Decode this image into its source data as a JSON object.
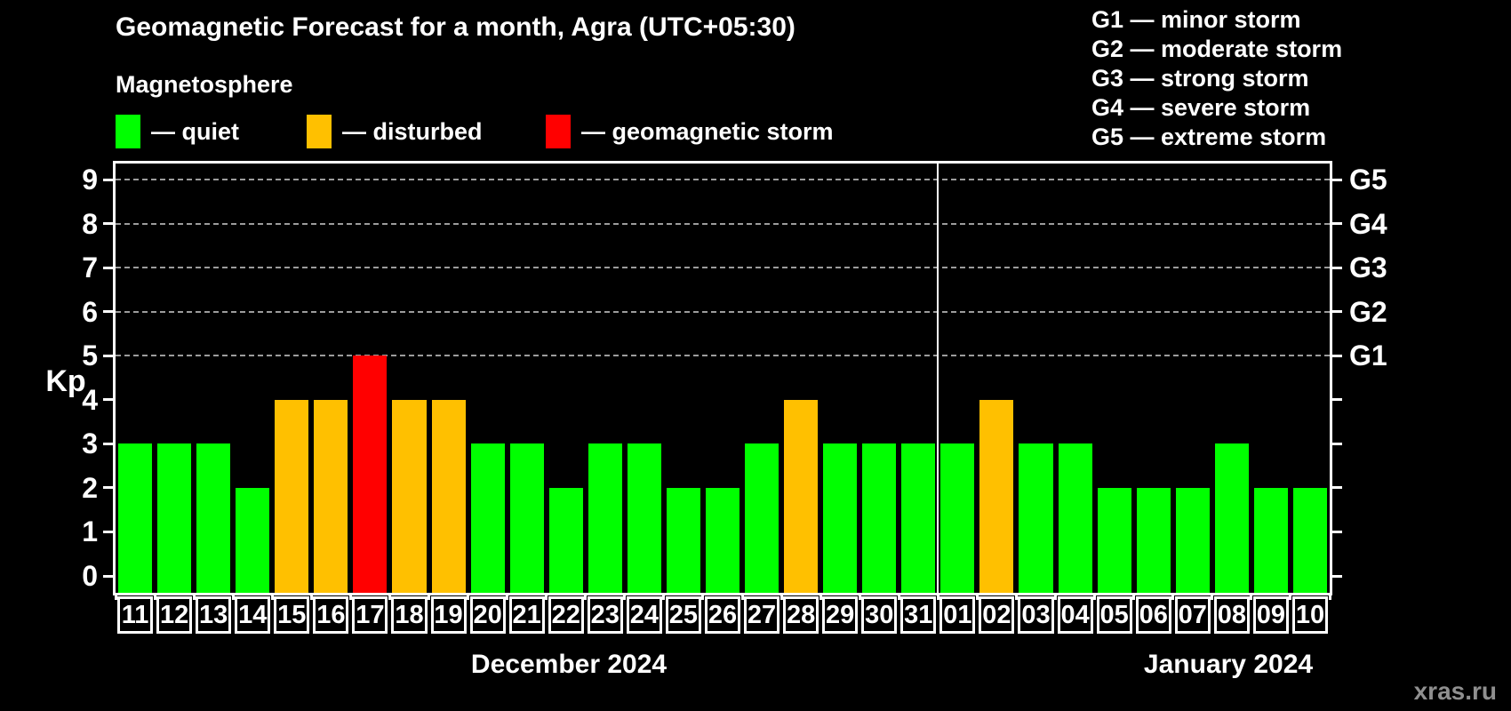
{
  "header": {
    "title": "Geomagnetic Forecast for a month, Agra (UTC+05:30)",
    "subtitle": "Magnetosphere"
  },
  "legend": {
    "items": [
      {
        "name": "quiet",
        "label": "— quiet",
        "color": "#00ff00"
      },
      {
        "name": "disturbed",
        "label": "— disturbed",
        "color": "#ffc000"
      },
      {
        "name": "storm",
        "label": "— geomagnetic storm",
        "color": "#ff0000"
      }
    ]
  },
  "g_scale_legend": {
    "lines": [
      "G1 — minor storm",
      "G2 — moderate storm",
      "G3 — strong storm",
      "G4 — severe storm",
      "G5 — extreme storm"
    ]
  },
  "watermark": "xras.ru",
  "chart_data": {
    "type": "bar",
    "title": "Geomagnetic Forecast for a month, Agra (UTC+05:30)",
    "ylabel": "Kp",
    "ylim": [
      0,
      9
    ],
    "yticks": [
      0,
      1,
      2,
      3,
      4,
      5,
      6,
      7,
      8,
      9
    ],
    "gridlines_at": [
      5,
      6,
      7,
      8,
      9
    ],
    "grid": "dashed-horizontal",
    "legend_position": "top",
    "colors": {
      "quiet": "#00ff00",
      "disturbed": "#ffc000",
      "storm": "#ff0000"
    },
    "right_axis_labels": [
      {
        "kp": 5,
        "label": "G1"
      },
      {
        "kp": 6,
        "label": "G2"
      },
      {
        "kp": 7,
        "label": "G3"
      },
      {
        "kp": 8,
        "label": "G4"
      },
      {
        "kp": 9,
        "label": "G5"
      }
    ],
    "months": [
      {
        "label": "December 2024",
        "days": 21
      },
      {
        "label": "January 2024",
        "days": 10
      }
    ],
    "bars": [
      {
        "day": "11",
        "kp": 3,
        "status": "quiet"
      },
      {
        "day": "12",
        "kp": 3,
        "status": "quiet"
      },
      {
        "day": "13",
        "kp": 3,
        "status": "quiet"
      },
      {
        "day": "14",
        "kp": 2,
        "status": "quiet"
      },
      {
        "day": "15",
        "kp": 4,
        "status": "disturbed"
      },
      {
        "day": "16",
        "kp": 4,
        "status": "disturbed"
      },
      {
        "day": "17",
        "kp": 5,
        "status": "storm"
      },
      {
        "day": "18",
        "kp": 4,
        "status": "disturbed"
      },
      {
        "day": "19",
        "kp": 4,
        "status": "disturbed"
      },
      {
        "day": "20",
        "kp": 3,
        "status": "quiet"
      },
      {
        "day": "21",
        "kp": 3,
        "status": "quiet"
      },
      {
        "day": "22",
        "kp": 2,
        "status": "quiet"
      },
      {
        "day": "23",
        "kp": 3,
        "status": "quiet"
      },
      {
        "day": "24",
        "kp": 3,
        "status": "quiet"
      },
      {
        "day": "25",
        "kp": 2,
        "status": "quiet"
      },
      {
        "day": "26",
        "kp": 2,
        "status": "quiet"
      },
      {
        "day": "27",
        "kp": 3,
        "status": "quiet"
      },
      {
        "day": "28",
        "kp": 4,
        "status": "disturbed"
      },
      {
        "day": "29",
        "kp": 3,
        "status": "quiet"
      },
      {
        "day": "30",
        "kp": 3,
        "status": "quiet"
      },
      {
        "day": "31",
        "kp": 3,
        "status": "quiet"
      },
      {
        "day": "01",
        "kp": 3,
        "status": "quiet"
      },
      {
        "day": "02",
        "kp": 4,
        "status": "disturbed"
      },
      {
        "day": "03",
        "kp": 3,
        "status": "quiet"
      },
      {
        "day": "04",
        "kp": 3,
        "status": "quiet"
      },
      {
        "day": "05",
        "kp": 2,
        "status": "quiet"
      },
      {
        "day": "06",
        "kp": 2,
        "status": "quiet"
      },
      {
        "day": "07",
        "kp": 2,
        "status": "quiet"
      },
      {
        "day": "08",
        "kp": 3,
        "status": "quiet"
      },
      {
        "day": "09",
        "kp": 2,
        "status": "quiet"
      },
      {
        "day": "10",
        "kp": 2,
        "status": "quiet"
      }
    ]
  }
}
